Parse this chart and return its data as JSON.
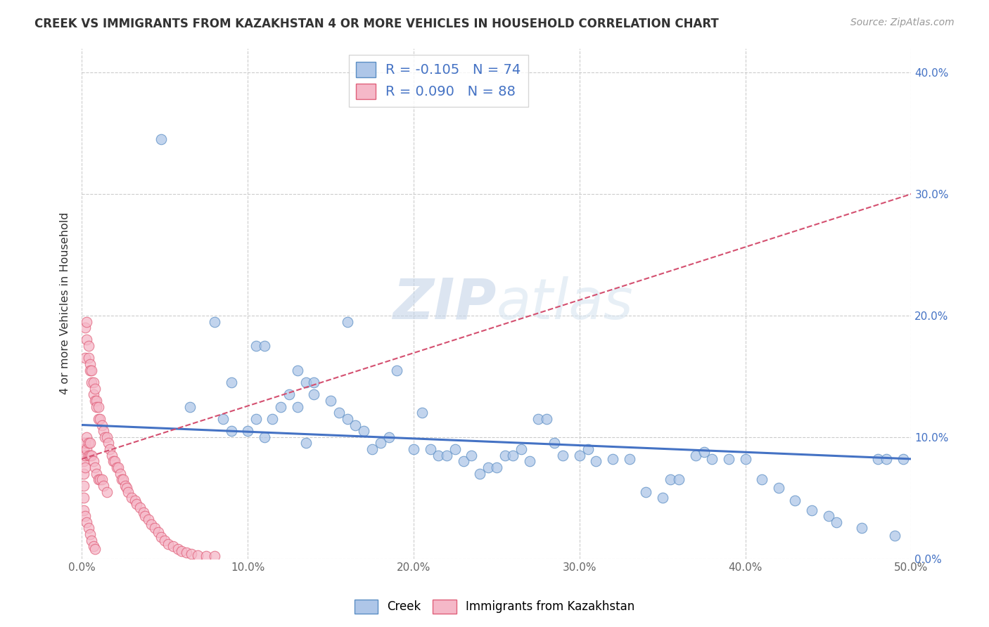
{
  "title": "CREEK VS IMMIGRANTS FROM KAZAKHSTAN 4 OR MORE VEHICLES IN HOUSEHOLD CORRELATION CHART",
  "source": "Source: ZipAtlas.com",
  "ylabel": "4 or more Vehicles in Household",
  "xlim": [
    0.0,
    0.5
  ],
  "ylim": [
    0.0,
    0.42
  ],
  "creek_color": "#aec6e8",
  "creek_edge_color": "#5b8ec4",
  "immigrants_color": "#f5b8c8",
  "immigrants_edge_color": "#e0607a",
  "creek_R": -0.105,
  "creek_N": 74,
  "immigrants_R": 0.09,
  "immigrants_N": 88,
  "trend_line_color_creek": "#4472c4",
  "trend_line_color_immigrants": "#d45070",
  "watermark": "ZIPatlas",
  "legend_label_creek": "Creek",
  "legend_label_immigrants": "Immigrants from Kazakhstan",
  "creek_x": [
    0.048,
    0.065,
    0.08,
    0.085,
    0.09,
    0.09,
    0.1,
    0.105,
    0.105,
    0.11,
    0.11,
    0.115,
    0.12,
    0.125,
    0.13,
    0.13,
    0.135,
    0.135,
    0.14,
    0.14,
    0.15,
    0.155,
    0.16,
    0.16,
    0.165,
    0.17,
    0.175,
    0.18,
    0.185,
    0.19,
    0.2,
    0.205,
    0.21,
    0.215,
    0.22,
    0.225,
    0.23,
    0.235,
    0.24,
    0.245,
    0.25,
    0.255,
    0.26,
    0.265,
    0.27,
    0.275,
    0.28,
    0.285,
    0.29,
    0.3,
    0.305,
    0.31,
    0.32,
    0.33,
    0.34,
    0.35,
    0.355,
    0.36,
    0.37,
    0.375,
    0.38,
    0.39,
    0.4,
    0.41,
    0.42,
    0.43,
    0.44,
    0.45,
    0.455,
    0.47,
    0.48,
    0.485,
    0.49,
    0.495
  ],
  "creek_y": [
    0.345,
    0.125,
    0.195,
    0.115,
    0.105,
    0.145,
    0.105,
    0.175,
    0.115,
    0.175,
    0.1,
    0.115,
    0.125,
    0.135,
    0.155,
    0.125,
    0.145,
    0.095,
    0.145,
    0.135,
    0.13,
    0.12,
    0.195,
    0.115,
    0.11,
    0.105,
    0.09,
    0.095,
    0.1,
    0.155,
    0.09,
    0.12,
    0.09,
    0.085,
    0.085,
    0.09,
    0.08,
    0.085,
    0.07,
    0.075,
    0.075,
    0.085,
    0.085,
    0.09,
    0.08,
    0.115,
    0.115,
    0.095,
    0.085,
    0.085,
    0.09,
    0.08,
    0.082,
    0.082,
    0.055,
    0.05,
    0.065,
    0.065,
    0.085,
    0.088,
    0.082,
    0.082,
    0.082,
    0.065,
    0.058,
    0.048,
    0.04,
    0.035,
    0.03,
    0.025,
    0.082,
    0.082,
    0.019,
    0.082
  ],
  "immigrants_x": [
    0.001,
    0.001,
    0.001,
    0.001,
    0.001,
    0.002,
    0.002,
    0.002,
    0.002,
    0.002,
    0.003,
    0.003,
    0.003,
    0.003,
    0.004,
    0.004,
    0.004,
    0.004,
    0.005,
    0.005,
    0.005,
    0.005,
    0.006,
    0.006,
    0.006,
    0.007,
    0.007,
    0.007,
    0.008,
    0.008,
    0.008,
    0.009,
    0.009,
    0.009,
    0.01,
    0.01,
    0.01,
    0.011,
    0.011,
    0.012,
    0.012,
    0.013,
    0.013,
    0.014,
    0.015,
    0.015,
    0.016,
    0.017,
    0.018,
    0.019,
    0.02,
    0.021,
    0.022,
    0.023,
    0.024,
    0.025,
    0.026,
    0.027,
    0.028,
    0.03,
    0.032,
    0.033,
    0.035,
    0.037,
    0.038,
    0.04,
    0.042,
    0.044,
    0.046,
    0.048,
    0.05,
    0.052,
    0.055,
    0.058,
    0.06,
    0.063,
    0.066,
    0.07,
    0.075,
    0.08,
    0.001,
    0.002,
    0.003,
    0.004,
    0.005,
    0.006,
    0.007,
    0.008
  ],
  "immigrants_y": [
    0.09,
    0.08,
    0.07,
    0.06,
    0.05,
    0.19,
    0.165,
    0.095,
    0.085,
    0.075,
    0.195,
    0.18,
    0.1,
    0.09,
    0.175,
    0.165,
    0.095,
    0.085,
    0.16,
    0.155,
    0.095,
    0.085,
    0.155,
    0.145,
    0.085,
    0.145,
    0.135,
    0.08,
    0.14,
    0.13,
    0.075,
    0.13,
    0.125,
    0.07,
    0.125,
    0.115,
    0.065,
    0.115,
    0.065,
    0.11,
    0.065,
    0.105,
    0.06,
    0.1,
    0.1,
    0.055,
    0.095,
    0.09,
    0.085,
    0.08,
    0.08,
    0.075,
    0.075,
    0.07,
    0.065,
    0.065,
    0.06,
    0.058,
    0.055,
    0.05,
    0.048,
    0.045,
    0.042,
    0.038,
    0.035,
    0.032,
    0.028,
    0.025,
    0.022,
    0.018,
    0.015,
    0.012,
    0.01,
    0.008,
    0.006,
    0.005,
    0.004,
    0.003,
    0.002,
    0.002,
    0.04,
    0.035,
    0.03,
    0.025,
    0.02,
    0.015,
    0.01,
    0.008
  ]
}
